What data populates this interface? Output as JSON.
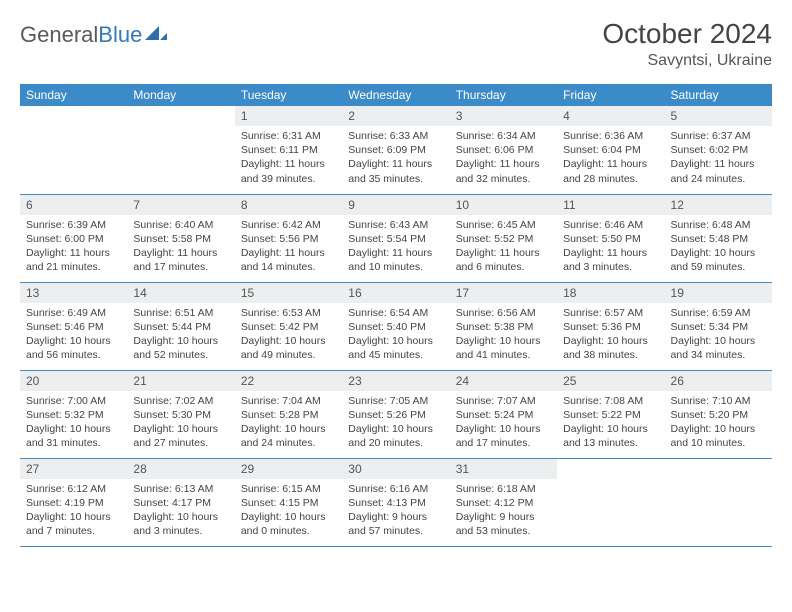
{
  "brand": {
    "part1": "General",
    "part2": "Blue"
  },
  "title": "October 2024",
  "location": "Savyntsi, Ukraine",
  "colors": {
    "header_bg": "#3b8bc9",
    "header_fg": "#ffffff",
    "daynum_bg": "#eceef0",
    "row_border": "#3b8bc9",
    "text": "#444444",
    "brand_gray": "#5a5a5a",
    "brand_blue": "#337ab7"
  },
  "weekdays": [
    "Sunday",
    "Monday",
    "Tuesday",
    "Wednesday",
    "Thursday",
    "Friday",
    "Saturday"
  ],
  "weeks": [
    [
      {
        "blank": true
      },
      {
        "blank": true
      },
      {
        "day": "1",
        "sunrise": "Sunrise: 6:31 AM",
        "sunset": "Sunset: 6:11 PM",
        "dl1": "Daylight: 11 hours",
        "dl2": "and 39 minutes."
      },
      {
        "day": "2",
        "sunrise": "Sunrise: 6:33 AM",
        "sunset": "Sunset: 6:09 PM",
        "dl1": "Daylight: 11 hours",
        "dl2": "and 35 minutes."
      },
      {
        "day": "3",
        "sunrise": "Sunrise: 6:34 AM",
        "sunset": "Sunset: 6:06 PM",
        "dl1": "Daylight: 11 hours",
        "dl2": "and 32 minutes."
      },
      {
        "day": "4",
        "sunrise": "Sunrise: 6:36 AM",
        "sunset": "Sunset: 6:04 PM",
        "dl1": "Daylight: 11 hours",
        "dl2": "and 28 minutes."
      },
      {
        "day": "5",
        "sunrise": "Sunrise: 6:37 AM",
        "sunset": "Sunset: 6:02 PM",
        "dl1": "Daylight: 11 hours",
        "dl2": "and 24 minutes."
      }
    ],
    [
      {
        "day": "6",
        "sunrise": "Sunrise: 6:39 AM",
        "sunset": "Sunset: 6:00 PM",
        "dl1": "Daylight: 11 hours",
        "dl2": "and 21 minutes."
      },
      {
        "day": "7",
        "sunrise": "Sunrise: 6:40 AM",
        "sunset": "Sunset: 5:58 PM",
        "dl1": "Daylight: 11 hours",
        "dl2": "and 17 minutes."
      },
      {
        "day": "8",
        "sunrise": "Sunrise: 6:42 AM",
        "sunset": "Sunset: 5:56 PM",
        "dl1": "Daylight: 11 hours",
        "dl2": "and 14 minutes."
      },
      {
        "day": "9",
        "sunrise": "Sunrise: 6:43 AM",
        "sunset": "Sunset: 5:54 PM",
        "dl1": "Daylight: 11 hours",
        "dl2": "and 10 minutes."
      },
      {
        "day": "10",
        "sunrise": "Sunrise: 6:45 AM",
        "sunset": "Sunset: 5:52 PM",
        "dl1": "Daylight: 11 hours",
        "dl2": "and 6 minutes."
      },
      {
        "day": "11",
        "sunrise": "Sunrise: 6:46 AM",
        "sunset": "Sunset: 5:50 PM",
        "dl1": "Daylight: 11 hours",
        "dl2": "and 3 minutes."
      },
      {
        "day": "12",
        "sunrise": "Sunrise: 6:48 AM",
        "sunset": "Sunset: 5:48 PM",
        "dl1": "Daylight: 10 hours",
        "dl2": "and 59 minutes."
      }
    ],
    [
      {
        "day": "13",
        "sunrise": "Sunrise: 6:49 AM",
        "sunset": "Sunset: 5:46 PM",
        "dl1": "Daylight: 10 hours",
        "dl2": "and 56 minutes."
      },
      {
        "day": "14",
        "sunrise": "Sunrise: 6:51 AM",
        "sunset": "Sunset: 5:44 PM",
        "dl1": "Daylight: 10 hours",
        "dl2": "and 52 minutes."
      },
      {
        "day": "15",
        "sunrise": "Sunrise: 6:53 AM",
        "sunset": "Sunset: 5:42 PM",
        "dl1": "Daylight: 10 hours",
        "dl2": "and 49 minutes."
      },
      {
        "day": "16",
        "sunrise": "Sunrise: 6:54 AM",
        "sunset": "Sunset: 5:40 PM",
        "dl1": "Daylight: 10 hours",
        "dl2": "and 45 minutes."
      },
      {
        "day": "17",
        "sunrise": "Sunrise: 6:56 AM",
        "sunset": "Sunset: 5:38 PM",
        "dl1": "Daylight: 10 hours",
        "dl2": "and 41 minutes."
      },
      {
        "day": "18",
        "sunrise": "Sunrise: 6:57 AM",
        "sunset": "Sunset: 5:36 PM",
        "dl1": "Daylight: 10 hours",
        "dl2": "and 38 minutes."
      },
      {
        "day": "19",
        "sunrise": "Sunrise: 6:59 AM",
        "sunset": "Sunset: 5:34 PM",
        "dl1": "Daylight: 10 hours",
        "dl2": "and 34 minutes."
      }
    ],
    [
      {
        "day": "20",
        "sunrise": "Sunrise: 7:00 AM",
        "sunset": "Sunset: 5:32 PM",
        "dl1": "Daylight: 10 hours",
        "dl2": "and 31 minutes."
      },
      {
        "day": "21",
        "sunrise": "Sunrise: 7:02 AM",
        "sunset": "Sunset: 5:30 PM",
        "dl1": "Daylight: 10 hours",
        "dl2": "and 27 minutes."
      },
      {
        "day": "22",
        "sunrise": "Sunrise: 7:04 AM",
        "sunset": "Sunset: 5:28 PM",
        "dl1": "Daylight: 10 hours",
        "dl2": "and 24 minutes."
      },
      {
        "day": "23",
        "sunrise": "Sunrise: 7:05 AM",
        "sunset": "Sunset: 5:26 PM",
        "dl1": "Daylight: 10 hours",
        "dl2": "and 20 minutes."
      },
      {
        "day": "24",
        "sunrise": "Sunrise: 7:07 AM",
        "sunset": "Sunset: 5:24 PM",
        "dl1": "Daylight: 10 hours",
        "dl2": "and 17 minutes."
      },
      {
        "day": "25",
        "sunrise": "Sunrise: 7:08 AM",
        "sunset": "Sunset: 5:22 PM",
        "dl1": "Daylight: 10 hours",
        "dl2": "and 13 minutes."
      },
      {
        "day": "26",
        "sunrise": "Sunrise: 7:10 AM",
        "sunset": "Sunset: 5:20 PM",
        "dl1": "Daylight: 10 hours",
        "dl2": "and 10 minutes."
      }
    ],
    [
      {
        "day": "27",
        "sunrise": "Sunrise: 6:12 AM",
        "sunset": "Sunset: 4:19 PM",
        "dl1": "Daylight: 10 hours",
        "dl2": "and 7 minutes."
      },
      {
        "day": "28",
        "sunrise": "Sunrise: 6:13 AM",
        "sunset": "Sunset: 4:17 PM",
        "dl1": "Daylight: 10 hours",
        "dl2": "and 3 minutes."
      },
      {
        "day": "29",
        "sunrise": "Sunrise: 6:15 AM",
        "sunset": "Sunset: 4:15 PM",
        "dl1": "Daylight: 10 hours",
        "dl2": "and 0 minutes."
      },
      {
        "day": "30",
        "sunrise": "Sunrise: 6:16 AM",
        "sunset": "Sunset: 4:13 PM",
        "dl1": "Daylight: 9 hours",
        "dl2": "and 57 minutes."
      },
      {
        "day": "31",
        "sunrise": "Sunrise: 6:18 AM",
        "sunset": "Sunset: 4:12 PM",
        "dl1": "Daylight: 9 hours",
        "dl2": "and 53 minutes."
      },
      {
        "blank": true
      },
      {
        "blank": true
      }
    ]
  ]
}
